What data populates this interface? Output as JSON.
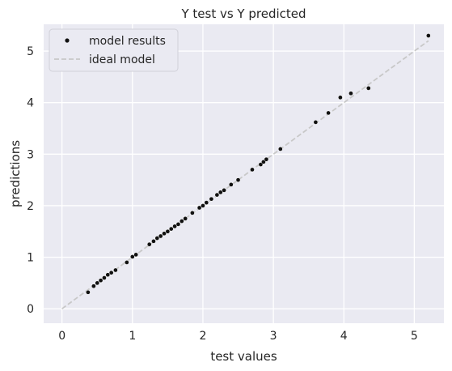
{
  "chart_data": {
    "type": "scatter",
    "title": "Y test vs Y predicted",
    "xlabel": "test values",
    "ylabel": "predictions",
    "xlim": [
      -0.26,
      5.42
    ],
    "ylim": [
      -0.28,
      5.52
    ],
    "xticks": [
      0,
      1,
      2,
      3,
      4,
      5
    ],
    "yticks": [
      0,
      1,
      2,
      3,
      4,
      5
    ],
    "grid": true,
    "legend_position": "top-left",
    "colors": {
      "background": "#eaeaf2",
      "grid": "#ffffff",
      "points": "#111111",
      "ideal_line": "#c8c8c8"
    },
    "series": [
      {
        "name": "model results",
        "kind": "scatter",
        "x": [
          0.37,
          0.45,
          0.5,
          0.55,
          0.6,
          0.65,
          0.7,
          0.76,
          0.92,
          1.0,
          1.05,
          1.24,
          1.3,
          1.35,
          1.4,
          1.45,
          1.5,
          1.55,
          1.6,
          1.65,
          1.7,
          1.75,
          1.85,
          1.95,
          2.0,
          2.05,
          2.12,
          2.2,
          2.25,
          2.3,
          2.4,
          2.5,
          2.7,
          2.82,
          2.86,
          2.9,
          3.1,
          3.6,
          3.78,
          3.95,
          4.1,
          4.35,
          5.2
        ],
        "y": [
          0.32,
          0.44,
          0.5,
          0.55,
          0.6,
          0.66,
          0.7,
          0.75,
          0.9,
          1.01,
          1.05,
          1.25,
          1.31,
          1.37,
          1.41,
          1.46,
          1.5,
          1.55,
          1.6,
          1.64,
          1.7,
          1.75,
          1.86,
          1.96,
          2.0,
          2.06,
          2.13,
          2.21,
          2.26,
          2.3,
          2.41,
          2.5,
          2.7,
          2.8,
          2.85,
          2.9,
          3.1,
          3.62,
          3.8,
          4.1,
          4.18,
          4.28,
          5.3
        ]
      },
      {
        "name": "ideal model",
        "kind": "line",
        "style": "dashed",
        "x": [
          0,
          5.2
        ],
        "y": [
          0,
          5.2
        ]
      }
    ]
  }
}
